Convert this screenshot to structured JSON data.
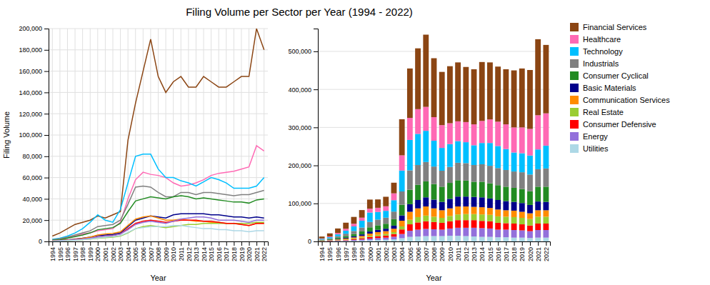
{
  "chart_data": [
    {
      "type": "line",
      "title": "Filing Volume per Sector per Year (1994 - 2022)",
      "xlabel": "Year",
      "ylabel": "Filing Volume",
      "x": [
        1994,
        1995,
        1996,
        1997,
        1998,
        1999,
        2000,
        2001,
        2002,
        2003,
        2004,
        2005,
        2006,
        2007,
        2008,
        2009,
        2010,
        2011,
        2012,
        2013,
        2014,
        2015,
        2016,
        2017,
        2018,
        2019,
        2020,
        2021,
        2022
      ],
      "xlim": [
        1993.5,
        2022.5
      ],
      "xticks": [
        1994,
        1995,
        1996,
        1997,
        1998,
        1999,
        2000,
        2001,
        2002,
        2003,
        2004,
        2005,
        2006,
        2007,
        2008,
        2009,
        2010,
        2011,
        2012,
        2013,
        2014,
        2015,
        2016,
        2017,
        2018,
        2019,
        2020,
        2021,
        2022
      ],
      "ylim": [
        0,
        200000
      ],
      "yticks": [
        0,
        {
          "value": 20000,
          "label": "20,000"
        },
        {
          "value": 40000,
          "label": "40,000"
        },
        {
          "value": 60000,
          "label": "60,000"
        },
        {
          "value": 80000,
          "label": "80,000"
        },
        {
          "value": 100000,
          "label": "100,000"
        },
        {
          "value": 120000,
          "label": "120,000"
        },
        {
          "value": 140000,
          "label": "140,000"
        },
        {
          "value": 160000,
          "label": "160,000"
        },
        {
          "value": 180000,
          "label": "180,000"
        },
        {
          "value": 200000,
          "label": "200,000"
        }
      ],
      "grid": true,
      "legend": "right",
      "series": [
        {
          "name": "Financial Services",
          "color": "#8B4513",
          "values": [
            5000,
            8000,
            12000,
            16000,
            18000,
            20000,
            24000,
            22000,
            25000,
            28000,
            95000,
            130000,
            160000,
            190000,
            155000,
            140000,
            150000,
            155000,
            145000,
            145000,
            155000,
            150000,
            145000,
            145000,
            150000,
            155000,
            155000,
            200000,
            180000
          ]
        },
        {
          "name": "Healthcare",
          "color": "#FF69B4",
          "values": [
            1000,
            2000,
            3500,
            5000,
            7000,
            8000,
            10000,
            11000,
            12000,
            18000,
            40000,
            58000,
            65000,
            63000,
            62000,
            60000,
            55000,
            52000,
            53000,
            55000,
            58000,
            62000,
            64000,
            65000,
            66000,
            68000,
            70000,
            90000,
            85000
          ]
        },
        {
          "name": "Technology",
          "color": "#00BFFF",
          "values": [
            2000,
            3000,
            5000,
            8000,
            12000,
            18000,
            25000,
            20000,
            18000,
            30000,
            55000,
            80000,
            82000,
            82000,
            68000,
            60000,
            60000,
            57000,
            55000,
            52000,
            56000,
            60000,
            58000,
            55000,
            50000,
            50000,
            50000,
            52000,
            60000
          ]
        },
        {
          "name": "Industrials",
          "color": "#808080",
          "values": [
            1500,
            2500,
            4000,
            6000,
            8000,
            10000,
            14000,
            15000,
            16000,
            20000,
            35000,
            51000,
            52000,
            51000,
            46000,
            42000,
            42000,
            46000,
            46000,
            44000,
            46000,
            46000,
            45000,
            44000,
            43000,
            44000,
            44000,
            46000,
            48000
          ]
        },
        {
          "name": "Consumer Cyclical",
          "color": "#228B22",
          "values": [
            1000,
            1500,
            3000,
            4500,
            6000,
            8000,
            11000,
            12000,
            13000,
            17000,
            28000,
            38000,
            40000,
            42000,
            41000,
            40000,
            42000,
            43000,
            42000,
            40000,
            41000,
            40000,
            39000,
            38000,
            37000,
            37000,
            36000,
            39000,
            40000
          ]
        },
        {
          "name": "Basic Materials",
          "color": "#00008B",
          "values": [
            500,
            900,
            1400,
            2200,
            3000,
            4000,
            5500,
            6000,
            6500,
            8000,
            14000,
            20000,
            22000,
            24000,
            23000,
            22000,
            25000,
            26000,
            26000,
            26000,
            26000,
            25000,
            25000,
            24000,
            23000,
            23000,
            22000,
            23000,
            22000
          ]
        },
        {
          "name": "Communication Services",
          "color": "#FF8C00",
          "values": [
            500,
            900,
            1400,
            2000,
            2800,
            4000,
            6000,
            7000,
            7500,
            9000,
            15000,
            21000,
            23000,
            24000,
            22000,
            20000,
            20000,
            21000,
            20000,
            19000,
            19000,
            18000,
            18000,
            17000,
            17000,
            16000,
            15000,
            17000,
            17000
          ]
        },
        {
          "name": "Real Estate",
          "color": "#9ACD32",
          "values": [
            300,
            500,
            800,
            1200,
            1600,
            2200,
            3000,
            3500,
            4000,
            5000,
            8000,
            12000,
            14000,
            15000,
            14000,
            13000,
            14000,
            15000,
            16000,
            16000,
            17000,
            17000,
            17000,
            17000,
            17000,
            17000,
            17000,
            18000,
            18000
          ]
        },
        {
          "name": "Consumer Defensive",
          "color": "#FF0000",
          "values": [
            400,
            700,
            1100,
            1600,
            2200,
            3000,
            4200,
            5000,
            5500,
            7000,
            12000,
            17000,
            19000,
            20000,
            19000,
            18000,
            19000,
            20000,
            20000,
            20000,
            19000,
            19000,
            18000,
            17000,
            17000,
            16000,
            15000,
            17000,
            17000
          ]
        },
        {
          "name": "Energy",
          "color": "#9370DB",
          "values": [
            400,
            700,
            1100,
            1600,
            2200,
            3000,
            4200,
            5000,
            5500,
            7000,
            11000,
            16000,
            18000,
            19000,
            18000,
            17000,
            19000,
            21000,
            22000,
            23000,
            23000,
            22000,
            20000,
            20000,
            20000,
            19000,
            18000,
            20000,
            20000
          ]
        },
        {
          "name": "Utilities",
          "color": "#ADD8E6",
          "values": [
            300,
            500,
            800,
            1200,
            1700,
            2300,
            3200,
            4000,
            4500,
            5500,
            8500,
            12000,
            13000,
            14000,
            14000,
            14000,
            15000,
            15000,
            14000,
            13000,
            12000,
            12000,
            11000,
            11000,
            10000,
            10000,
            9000,
            10000,
            10000
          ]
        }
      ]
    },
    {
      "type": "bar",
      "stacked": true,
      "xlabel": "Year",
      "x": [
        1994,
        1995,
        1996,
        1997,
        1998,
        1999,
        2000,
        2001,
        2002,
        2003,
        2004,
        2005,
        2006,
        2007,
        2008,
        2009,
        2010,
        2011,
        2012,
        2013,
        2014,
        2015,
        2016,
        2017,
        2018,
        2019,
        2020,
        2021,
        2022
      ],
      "xlim": [
        1993.5,
        2022.5
      ],
      "xticks": [
        1994,
        1995,
        1996,
        1997,
        1998,
        1999,
        2000,
        2001,
        2002,
        2003,
        2004,
        2005,
        2006,
        2007,
        2008,
        2009,
        2010,
        2011,
        2012,
        2013,
        2014,
        2015,
        2016,
        2017,
        2018,
        2019,
        2020,
        2021,
        2022
      ],
      "ylim": [
        0,
        560000
      ],
      "yticks": [
        0,
        {
          "value": 100000,
          "label": "100,000"
        },
        {
          "value": 200000,
          "label": "200,000"
        },
        {
          "value": 300000,
          "label": "300,000"
        },
        {
          "value": 400000,
          "label": "400,000"
        },
        {
          "value": 500000,
          "label": "500,000"
        }
      ],
      "grid": "y",
      "series": [
        {
          "name": "Utilities",
          "color": "#ADD8E6",
          "values": [
            300,
            500,
            800,
            1200,
            1700,
            2300,
            3200,
            4000,
            4500,
            5500,
            8500,
            12000,
            13000,
            14000,
            14000,
            14000,
            15000,
            15000,
            14000,
            13000,
            12000,
            12000,
            11000,
            11000,
            10000,
            10000,
            9000,
            10000,
            10000
          ]
        },
        {
          "name": "Energy",
          "color": "#9370DB",
          "values": [
            400,
            700,
            1100,
            1600,
            2200,
            3000,
            4200,
            5000,
            5500,
            7000,
            11000,
            16000,
            18000,
            19000,
            18000,
            17000,
            19000,
            21000,
            22000,
            23000,
            23000,
            22000,
            20000,
            20000,
            20000,
            19000,
            18000,
            20000,
            20000
          ]
        },
        {
          "name": "Consumer Defensive",
          "color": "#FF0000",
          "values": [
            400,
            700,
            1100,
            1600,
            2200,
            3000,
            4200,
            5000,
            5500,
            7000,
            12000,
            17000,
            19000,
            20000,
            19000,
            18000,
            19000,
            20000,
            20000,
            20000,
            19000,
            19000,
            18000,
            17000,
            17000,
            16000,
            15000,
            17000,
            17000
          ]
        },
        {
          "name": "Real Estate",
          "color": "#9ACD32",
          "values": [
            300,
            500,
            800,
            1200,
            1600,
            2200,
            3000,
            3500,
            4000,
            5000,
            8000,
            12000,
            14000,
            15000,
            14000,
            13000,
            14000,
            15000,
            16000,
            16000,
            17000,
            17000,
            17000,
            17000,
            17000,
            17000,
            17000,
            18000,
            18000
          ]
        },
        {
          "name": "Communication Services",
          "color": "#FF8C00",
          "values": [
            500,
            900,
            1400,
            2000,
            2800,
            4000,
            6000,
            7000,
            7500,
            9000,
            15000,
            21000,
            23000,
            24000,
            22000,
            20000,
            20000,
            21000,
            20000,
            19000,
            19000,
            18000,
            18000,
            17000,
            17000,
            16000,
            15000,
            17000,
            17000
          ]
        },
        {
          "name": "Basic Materials",
          "color": "#00008B",
          "values": [
            500,
            900,
            1400,
            2200,
            3000,
            4000,
            5500,
            6000,
            6500,
            8000,
            14000,
            20000,
            22000,
            24000,
            23000,
            22000,
            25000,
            26000,
            26000,
            26000,
            26000,
            25000,
            25000,
            24000,
            23000,
            23000,
            22000,
            23000,
            22000
          ]
        },
        {
          "name": "Consumer Cyclical",
          "color": "#228B22",
          "values": [
            1000,
            1500,
            3000,
            4500,
            6000,
            8000,
            11000,
            12000,
            13000,
            17000,
            28000,
            38000,
            40000,
            42000,
            41000,
            40000,
            42000,
            43000,
            42000,
            40000,
            41000,
            40000,
            39000,
            38000,
            37000,
            37000,
            36000,
            39000,
            40000
          ]
        },
        {
          "name": "Industrials",
          "color": "#808080",
          "values": [
            1500,
            2500,
            4000,
            6000,
            8000,
            10000,
            14000,
            15000,
            16000,
            20000,
            35000,
            51000,
            52000,
            51000,
            46000,
            42000,
            42000,
            46000,
            46000,
            44000,
            46000,
            46000,
            45000,
            44000,
            43000,
            44000,
            44000,
            46000,
            48000
          ]
        },
        {
          "name": "Technology",
          "color": "#00BFFF",
          "values": [
            2000,
            3000,
            5000,
            8000,
            12000,
            18000,
            25000,
            20000,
            18000,
            30000,
            55000,
            80000,
            82000,
            82000,
            68000,
            60000,
            60000,
            57000,
            55000,
            52000,
            56000,
            60000,
            58000,
            55000,
            50000,
            50000,
            50000,
            52000,
            60000
          ]
        },
        {
          "name": "Healthcare",
          "color": "#FF69B4",
          "values": [
            1000,
            2000,
            3500,
            5000,
            7000,
            8000,
            10000,
            11000,
            12000,
            18000,
            40000,
            58000,
            65000,
            63000,
            62000,
            60000,
            55000,
            52000,
            53000,
            55000,
            58000,
            62000,
            64000,
            65000,
            66000,
            68000,
            70000,
            90000,
            85000
          ]
        },
        {
          "name": "Financial Services",
          "color": "#8B4513",
          "values": [
            5000,
            8000,
            12000,
            16000,
            18000,
            20000,
            24000,
            22000,
            25000,
            28000,
            95000,
            130000,
            160000,
            190000,
            155000,
            140000,
            150000,
            155000,
            145000,
            145000,
            155000,
            150000,
            145000,
            145000,
            150000,
            155000,
            155000,
            200000,
            180000
          ]
        }
      ]
    }
  ]
}
